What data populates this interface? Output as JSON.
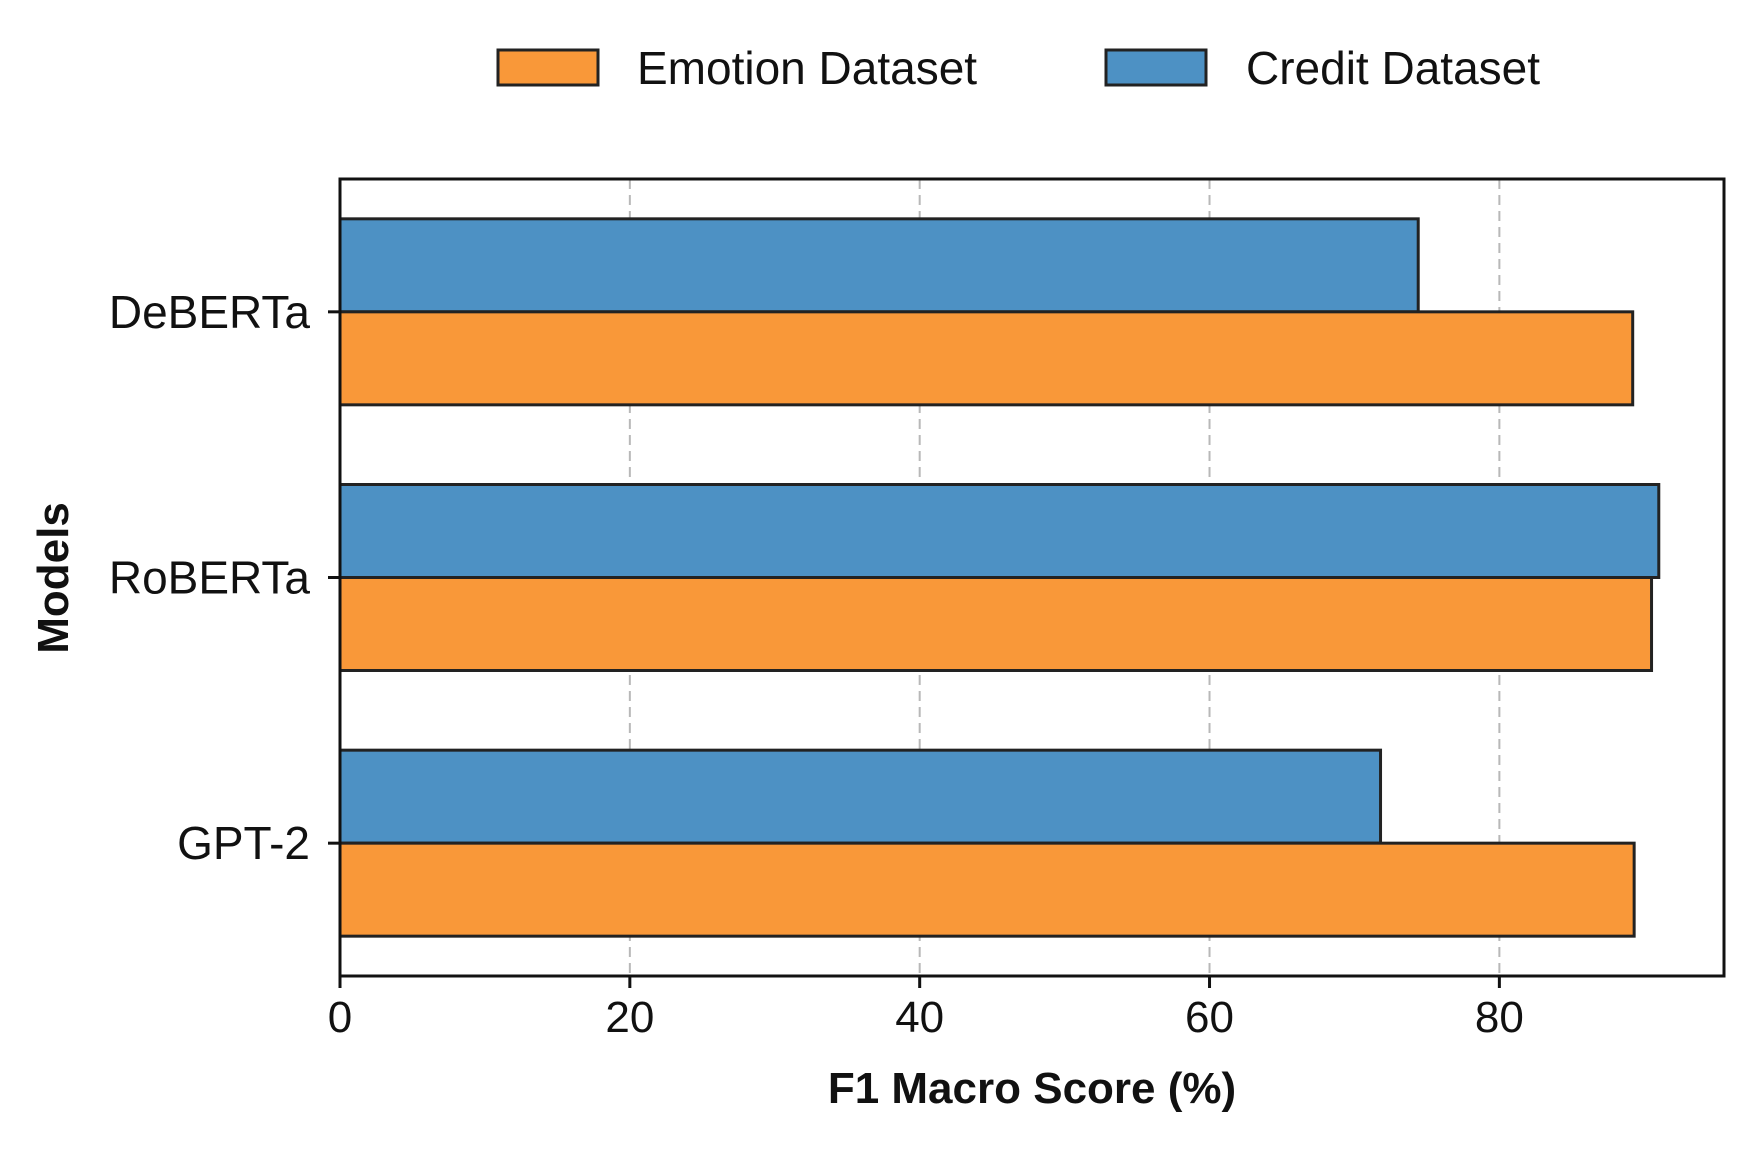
{
  "chart_data": {
    "type": "bar",
    "orientation": "horizontal",
    "title": "",
    "xlabel": "F1 Macro Score (%)",
    "ylabel": "Models",
    "xlim": [
      0,
      95.5
    ],
    "xticks": [
      0,
      20,
      40,
      60,
      80
    ],
    "grid": "x-dashed",
    "legend_position": "top-center",
    "categories": [
      "DeBERTa",
      "RoBERTa",
      "GPT-2"
    ],
    "series": [
      {
        "name": "Emotion Dataset",
        "color": "#F99839",
        "values": [
          89.2,
          90.5,
          89.3
        ]
      },
      {
        "name": "Credit Dataset",
        "color": "#4D91C4",
        "values": [
          74.4,
          91.0,
          71.8
        ]
      }
    ]
  }
}
